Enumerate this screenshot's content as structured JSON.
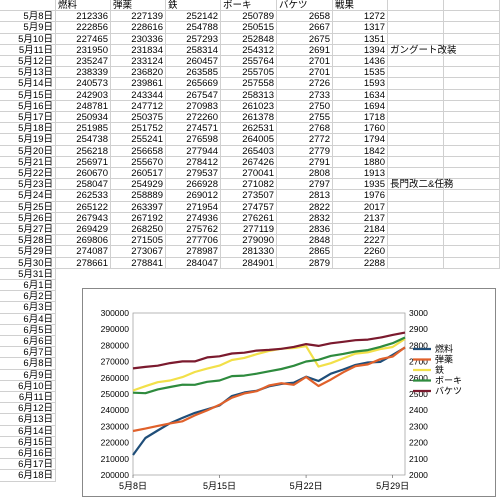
{
  "header": [
    "",
    "燃料",
    "弾薬",
    "鉄",
    "ボーキ",
    "バケツ",
    "戦果",
    "",
    ""
  ],
  "rows": [
    {
      "date": "5月8日",
      "v": [
        "212336",
        "227139",
        "252142",
        "250789",
        "2658",
        "1272"
      ],
      "note": ""
    },
    {
      "date": "5月9日",
      "v": [
        "222856",
        "228616",
        "254788",
        "250515",
        "2667",
        "1317"
      ],
      "note": ""
    },
    {
      "date": "5月10日",
      "v": [
        "227465",
        "230336",
        "257293",
        "252848",
        "2675",
        "1351"
      ],
      "note": ""
    },
    {
      "date": "5月11日",
      "v": [
        "231950",
        "231834",
        "258314",
        "254312",
        "2691",
        "1394"
      ],
      "note": "ガングート改装"
    },
    {
      "date": "5月12日",
      "v": [
        "235247",
        "233124",
        "260457",
        "255764",
        "2701",
        "1436"
      ],
      "note": ""
    },
    {
      "date": "5月13日",
      "v": [
        "238339",
        "236820",
        "263585",
        "255705",
        "2701",
        "1535"
      ],
      "note": ""
    },
    {
      "date": "5月14日",
      "v": [
        "240573",
        "239861",
        "265669",
        "257558",
        "2726",
        "1593"
      ],
      "note": ""
    },
    {
      "date": "5月15日",
      "v": [
        "242903",
        "243344",
        "267547",
        "258313",
        "2733",
        "1634"
      ],
      "note": ""
    },
    {
      "date": "5月16日",
      "v": [
        "248781",
        "247712",
        "270983",
        "261023",
        "2750",
        "1694"
      ],
      "note": ""
    },
    {
      "date": "5月17日",
      "v": [
        "250934",
        "250375",
        "272260",
        "261378",
        "2755",
        "1718"
      ],
      "note": ""
    },
    {
      "date": "5月18日",
      "v": [
        "251985",
        "251752",
        "274571",
        "262531",
        "2768",
        "1760"
      ],
      "note": ""
    },
    {
      "date": "5月19日",
      "v": [
        "254738",
        "255241",
        "276598",
        "264005",
        "2772",
        "1794"
      ],
      "note": ""
    },
    {
      "date": "5月20日",
      "v": [
        "256218",
        "256658",
        "277944",
        "265403",
        "2779",
        "1842"
      ],
      "note": ""
    },
    {
      "date": "5月21日",
      "v": [
        "256971",
        "255670",
        "278412",
        "267426",
        "2791",
        "1880"
      ],
      "note": ""
    },
    {
      "date": "5月22日",
      "v": [
        "260670",
        "260517",
        "279537",
        "270041",
        "2808",
        "1913"
      ],
      "note": ""
    },
    {
      "date": "5月23日",
      "v": [
        "258047",
        "254929",
        "266928",
        "271082",
        "2797",
        "1935"
      ],
      "note": "長門改二&任務"
    },
    {
      "date": "5月24日",
      "v": [
        "262533",
        "258889",
        "269012",
        "273507",
        "2813",
        "1976"
      ],
      "note": ""
    },
    {
      "date": "5月25日",
      "v": [
        "265122",
        "263397",
        "271954",
        "274757",
        "2822",
        "2017"
      ],
      "note": ""
    },
    {
      "date": "5月26日",
      "v": [
        "267943",
        "267192",
        "274936",
        "276261",
        "2832",
        "2137"
      ],
      "note": ""
    },
    {
      "date": "5月27日",
      "v": [
        "269429",
        "268250",
        "275762",
        "277119",
        "2836",
        "2184"
      ],
      "note": ""
    },
    {
      "date": "5月28日",
      "v": [
        "269806",
        "271505",
        "277706",
        "279090",
        "2848",
        "2227"
      ],
      "note": ""
    },
    {
      "date": "5月29日",
      "v": [
        "274087",
        "273067",
        "278987",
        "281330",
        "2865",
        "2260"
      ],
      "note": ""
    },
    {
      "date": "5月30日",
      "v": [
        "278661",
        "278841",
        "284047",
        "284901",
        "2879",
        "2288"
      ],
      "note": ""
    }
  ],
  "empty_dates": [
    "5月31日",
    "6月1日",
    "6月2日",
    "6月3日",
    "6月4日",
    "6月5日",
    "6月6日",
    "6月7日",
    "6月8日",
    "6月9日",
    "6月10日",
    "6月11日",
    "6月12日",
    "6月13日",
    "6月14日",
    "6月15日",
    "6月16日",
    "6月17日",
    "6月18日"
  ],
  "chart_data": {
    "type": "line",
    "title": "",
    "x": [
      "5月8日",
      "5月9日",
      "5月10日",
      "5月11日",
      "5月12日",
      "5月13日",
      "5月14日",
      "5月15日",
      "5月16日",
      "5月17日",
      "5月18日",
      "5月19日",
      "5月20日",
      "5月21日",
      "5月22日",
      "5月23日",
      "5月24日",
      "5月25日",
      "5月26日",
      "5月27日",
      "5月28日",
      "5月29日",
      "5月30日"
    ],
    "x_ticks": [
      "5月8日",
      "5月15日",
      "5月22日",
      "5月29日"
    ],
    "y_left": {
      "min": 200000,
      "max": 300000,
      "ticks": [
        "200000",
        "210000",
        "220000",
        "230000",
        "240000",
        "250000",
        "260000",
        "270000",
        "280000",
        "290000",
        "300000"
      ]
    },
    "y_right": {
      "min": 2000,
      "max": 3000,
      "ticks": [
        "2000",
        "2100",
        "2200",
        "2300",
        "2400",
        "2500",
        "2600",
        "2700",
        "2800",
        "2900",
        "3000"
      ]
    },
    "series": [
      {
        "name": "燃料",
        "axis": "left",
        "color": "#1f4e79",
        "values": [
          212336,
          222856,
          227465,
          231950,
          235247,
          238339,
          240573,
          242903,
          248781,
          250934,
          251985,
          254738,
          256218,
          256971,
          260670,
          258047,
          262533,
          265122,
          267943,
          269429,
          269806,
          274087,
          278661
        ]
      },
      {
        "name": "弾薬",
        "axis": "left",
        "color": "#e0612b",
        "values": [
          227139,
          228616,
          230336,
          231834,
          233124,
          236820,
          239861,
          243344,
          247712,
          250375,
          251752,
          255241,
          256658,
          255670,
          260517,
          254929,
          258889,
          263397,
          267192,
          268250,
          271505,
          273067,
          278841
        ]
      },
      {
        "name": "鉄",
        "axis": "left",
        "color": "#f2e049",
        "values": [
          252142,
          254788,
          257293,
          258314,
          260457,
          263585,
          265669,
          267547,
          270983,
          272260,
          274571,
          276598,
          277944,
          278412,
          279537,
          266928,
          269012,
          271954,
          274936,
          275762,
          277706,
          278987,
          284047
        ]
      },
      {
        "name": "ボーキ",
        "axis": "left",
        "color": "#2e8b3e",
        "values": [
          250789,
          250515,
          252848,
          254312,
          255764,
          255705,
          257558,
          258313,
          261023,
          261378,
          262531,
          264005,
          265403,
          267426,
          270041,
          271082,
          273507,
          274757,
          276261,
          277119,
          279090,
          281330,
          284901
        ]
      },
      {
        "name": "バケツ",
        "axis": "right",
        "color": "#7b1a2e",
        "values": [
          2658,
          2667,
          2675,
          2691,
          2701,
          2701,
          2726,
          2733,
          2750,
          2755,
          2768,
          2772,
          2779,
          2791,
          2808,
          2797,
          2813,
          2822,
          2832,
          2836,
          2848,
          2865,
          2879
        ]
      }
    ],
    "legend": "right"
  }
}
